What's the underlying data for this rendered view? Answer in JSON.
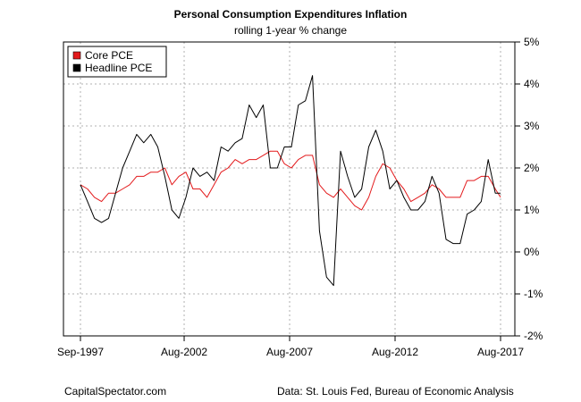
{
  "chart_data": {
    "type": "line",
    "title": "Personal Consumption Expenditures Inflation",
    "subtitle": "rolling 1-year % change",
    "x_ticks": [
      "Sep-1997",
      "Aug-2002",
      "Aug-2007",
      "Aug-2012",
      "Aug-2017"
    ],
    "y_ticks": [
      "5%",
      "4%",
      "3%",
      "2%",
      "1%",
      "0%",
      "-1%",
      "-2%"
    ],
    "ylim": [
      -2,
      5
    ],
    "xlim": [
      "1997-09",
      "2017-08"
    ],
    "grid": true,
    "legend_position": "top-left",
    "series": [
      {
        "name": "Core PCE",
        "color": "#e31a1c",
        "points": [
          [
            "1997-09",
            1.6
          ],
          [
            "1998-01",
            1.5
          ],
          [
            "1998-05",
            1.3
          ],
          [
            "1998-09",
            1.2
          ],
          [
            "1999-01",
            1.4
          ],
          [
            "1999-05",
            1.4
          ],
          [
            "1999-09",
            1.5
          ],
          [
            "2000-01",
            1.6
          ],
          [
            "2000-05",
            1.8
          ],
          [
            "2000-09",
            1.8
          ],
          [
            "2001-01",
            1.9
          ],
          [
            "2001-05",
            1.9
          ],
          [
            "2001-09",
            2.0
          ],
          [
            "2002-01",
            1.6
          ],
          [
            "2002-05",
            1.8
          ],
          [
            "2002-09",
            1.9
          ],
          [
            "2003-01",
            1.5
          ],
          [
            "2003-05",
            1.5
          ],
          [
            "2003-09",
            1.3
          ],
          [
            "2004-01",
            1.6
          ],
          [
            "2004-05",
            1.9
          ],
          [
            "2004-09",
            2.0
          ],
          [
            "2005-01",
            2.2
          ],
          [
            "2005-05",
            2.1
          ],
          [
            "2005-09",
            2.2
          ],
          [
            "2006-01",
            2.2
          ],
          [
            "2006-05",
            2.3
          ],
          [
            "2006-09",
            2.4
          ],
          [
            "2007-01",
            2.4
          ],
          [
            "2007-05",
            2.1
          ],
          [
            "2007-09",
            2.0
          ],
          [
            "2008-01",
            2.2
          ],
          [
            "2008-05",
            2.3
          ],
          [
            "2008-09",
            2.3
          ],
          [
            "2009-01",
            1.6
          ],
          [
            "2009-05",
            1.4
          ],
          [
            "2009-09",
            1.3
          ],
          [
            "2010-01",
            1.5
          ],
          [
            "2010-05",
            1.3
          ],
          [
            "2010-09",
            1.1
          ],
          [
            "2011-01",
            1.0
          ],
          [
            "2011-05",
            1.3
          ],
          [
            "2011-09",
            1.8
          ],
          [
            "2012-01",
            2.1
          ],
          [
            "2012-05",
            2.0
          ],
          [
            "2012-09",
            1.7
          ],
          [
            "2013-01",
            1.5
          ],
          [
            "2013-05",
            1.2
          ],
          [
            "2013-09",
            1.3
          ],
          [
            "2014-01",
            1.4
          ],
          [
            "2014-05",
            1.6
          ],
          [
            "2014-09",
            1.5
          ],
          [
            "2015-01",
            1.3
          ],
          [
            "2015-05",
            1.3
          ],
          [
            "2015-09",
            1.3
          ],
          [
            "2016-01",
            1.7
          ],
          [
            "2016-05",
            1.7
          ],
          [
            "2016-09",
            1.8
          ],
          [
            "2017-01",
            1.8
          ],
          [
            "2017-05",
            1.5
          ],
          [
            "2017-08",
            1.3
          ]
        ]
      },
      {
        "name": "Headline PCE",
        "color": "#000000",
        "points": [
          [
            "1997-09",
            1.6
          ],
          [
            "1998-01",
            1.2
          ],
          [
            "1998-05",
            0.8
          ],
          [
            "1998-09",
            0.7
          ],
          [
            "1999-01",
            0.8
          ],
          [
            "1999-05",
            1.4
          ],
          [
            "1999-09",
            2.0
          ],
          [
            "2000-01",
            2.4
          ],
          [
            "2000-05",
            2.8
          ],
          [
            "2000-09",
            2.6
          ],
          [
            "2001-01",
            2.8
          ],
          [
            "2001-05",
            2.5
          ],
          [
            "2001-09",
            1.8
          ],
          [
            "2002-01",
            1.0
          ],
          [
            "2002-05",
            0.8
          ],
          [
            "2002-09",
            1.3
          ],
          [
            "2003-01",
            2.0
          ],
          [
            "2003-05",
            1.8
          ],
          [
            "2003-09",
            1.9
          ],
          [
            "2004-01",
            1.7
          ],
          [
            "2004-05",
            2.5
          ],
          [
            "2004-09",
            2.4
          ],
          [
            "2005-01",
            2.6
          ],
          [
            "2005-05",
            2.7
          ],
          [
            "2005-09",
            3.5
          ],
          [
            "2006-01",
            3.2
          ],
          [
            "2006-05",
            3.5
          ],
          [
            "2006-09",
            2.0
          ],
          [
            "2007-01",
            2.0
          ],
          [
            "2007-05",
            2.5
          ],
          [
            "2007-09",
            2.5
          ],
          [
            "2008-01",
            3.5
          ],
          [
            "2008-05",
            3.6
          ],
          [
            "2008-09",
            4.2
          ],
          [
            "2009-01",
            0.5
          ],
          [
            "2009-05",
            -0.6
          ],
          [
            "2009-09",
            -0.8
          ],
          [
            "2010-01",
            2.4
          ],
          [
            "2010-05",
            1.8
          ],
          [
            "2010-09",
            1.3
          ],
          [
            "2011-01",
            1.5
          ],
          [
            "2011-05",
            2.5
          ],
          [
            "2011-09",
            2.9
          ],
          [
            "2012-01",
            2.4
          ],
          [
            "2012-05",
            1.5
          ],
          [
            "2012-09",
            1.7
          ],
          [
            "2013-01",
            1.3
          ],
          [
            "2013-05",
            1.0
          ],
          [
            "2013-09",
            1.0
          ],
          [
            "2014-01",
            1.2
          ],
          [
            "2014-05",
            1.8
          ],
          [
            "2014-09",
            1.4
          ],
          [
            "2015-01",
            0.3
          ],
          [
            "2015-05",
            0.2
          ],
          [
            "2015-09",
            0.2
          ],
          [
            "2016-01",
            0.9
          ],
          [
            "2016-05",
            1.0
          ],
          [
            "2016-09",
            1.2
          ],
          [
            "2017-01",
            2.2
          ],
          [
            "2017-05",
            1.4
          ],
          [
            "2017-08",
            1.4
          ]
        ]
      }
    ]
  },
  "footer": {
    "left": "CapitalSpectator.com",
    "right": "Data: St. Louis Fed, Bureau of Economic Analysis"
  }
}
